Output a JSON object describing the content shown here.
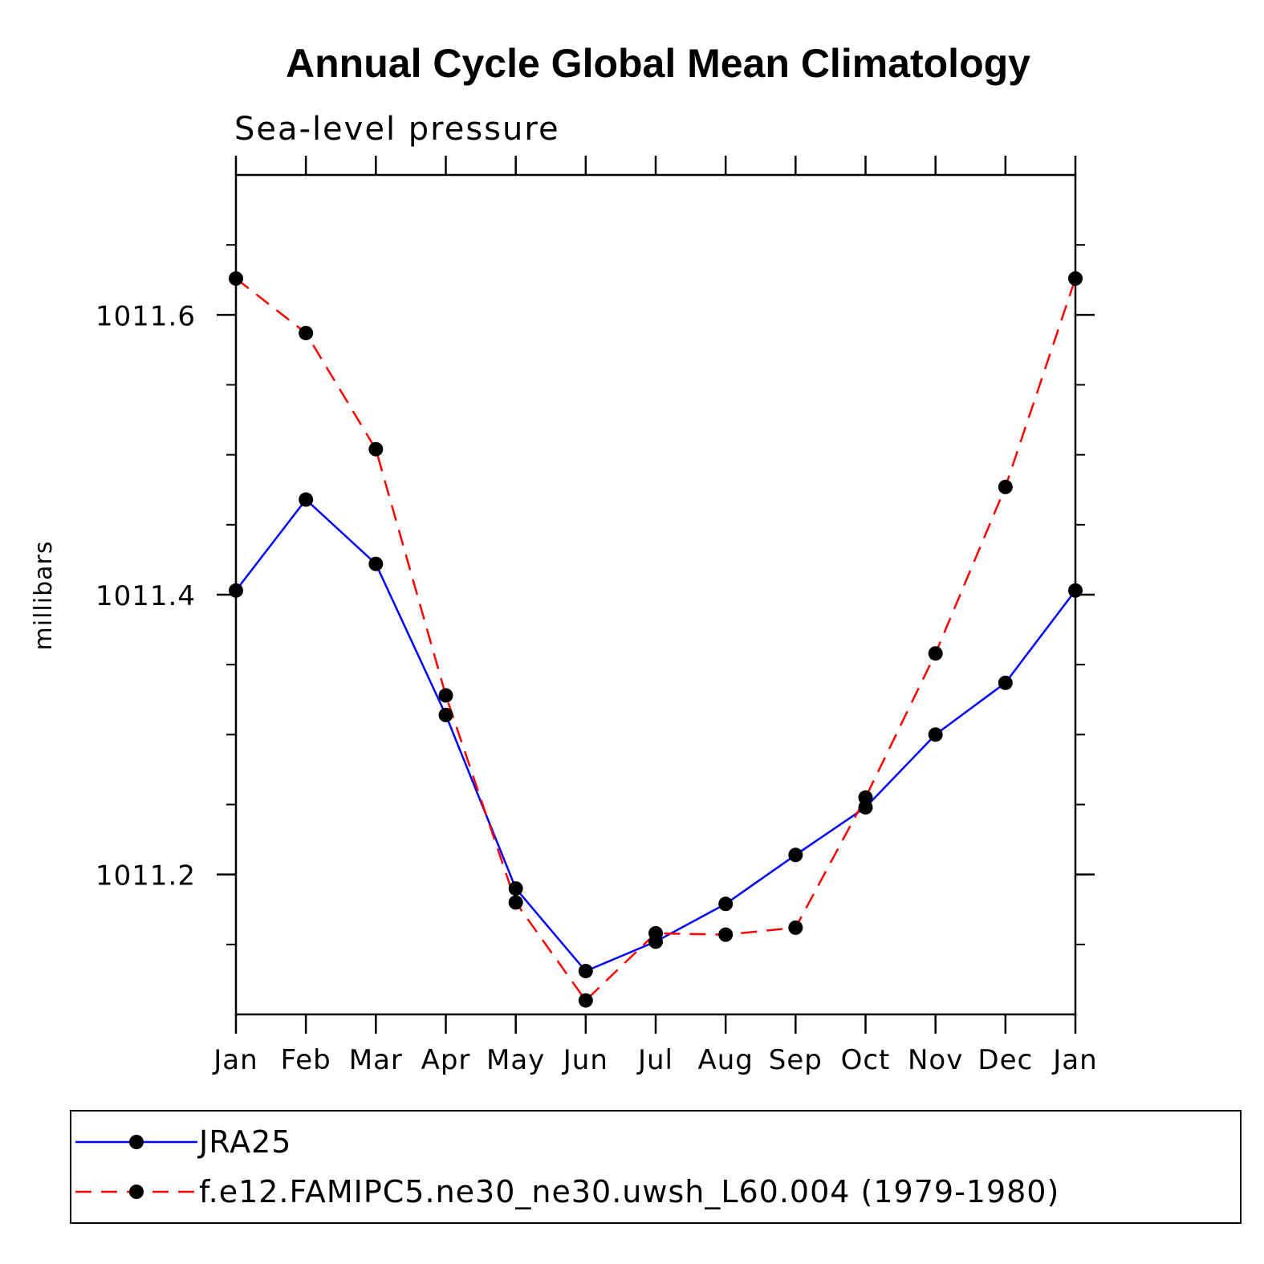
{
  "chart_data": {
    "type": "line",
    "title": "Annual Cycle Global Mean Climatology",
    "subtitle": "Sea-level pressure",
    "xlabel": "",
    "ylabel": "millibars",
    "categories": [
      "Jan",
      "Feb",
      "Mar",
      "Apr",
      "May",
      "Jun",
      "Jul",
      "Aug",
      "Sep",
      "Oct",
      "Nov",
      "Dec",
      "Jan"
    ],
    "ylim": [
      1011.1,
      1011.7
    ],
    "yticks_major": [
      1011.2,
      1011.4,
      1011.6
    ],
    "ytick_labels": [
      "1011.2",
      "1011.4",
      "1011.6"
    ],
    "ytick_minor_step": 0.05,
    "grid": false,
    "legend_position": "bottom",
    "series": [
      {
        "name": "JRA25",
        "color": "#0000ff",
        "style": "solid",
        "values": [
          1011.403,
          1011.468,
          1011.422,
          1011.314,
          1011.19,
          1011.131,
          1011.152,
          1011.179,
          1011.214,
          1011.248,
          1011.3,
          1011.337,
          1011.403
        ]
      },
      {
        "name": "f.e12.FAMIPC5.ne30_ne30.uwsh_L60.004 (1979-1980)",
        "color": "#ff0000",
        "style": "dashed",
        "values": [
          1011.626,
          1011.587,
          1011.504,
          1011.328,
          1011.18,
          1011.11,
          1011.158,
          1011.157,
          1011.162,
          1011.255,
          1011.358,
          1011.477,
          1011.626
        ]
      }
    ]
  }
}
